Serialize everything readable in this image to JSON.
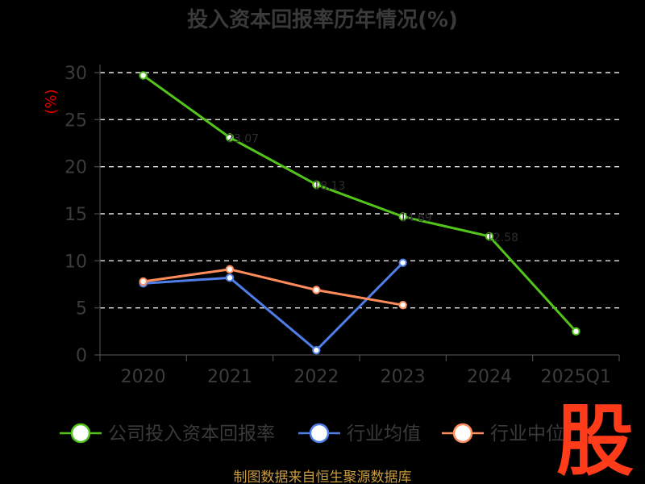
{
  "chart_data": {
    "type": "line",
    "title": "投入资本回报率历年情况(%)",
    "ylabel": "(%)",
    "xlabel": "",
    "categories": [
      "2020",
      "2021",
      "2022",
      "2023",
      "2024",
      "2025Q1"
    ],
    "ylim": [
      0,
      30
    ],
    "yticks": [
      0,
      5,
      10,
      15,
      20,
      25,
      30
    ],
    "grid": true,
    "legend_position": "bottom",
    "series": [
      {
        "name": "公司投入资本回报率",
        "color": "#52c41a",
        "values": [
          29.7,
          23.1,
          18.1,
          14.7,
          12.6,
          2.5
        ],
        "data_labels": [
          "",
          "23.07",
          "18.13",
          "14.69",
          "12.58",
          ""
        ]
      },
      {
        "name": "行业均值",
        "color": "#4f7ee8",
        "values": [
          7.6,
          8.2,
          0.5,
          9.8,
          null,
          null
        ],
        "data_labels": [
          "",
          "",
          "",
          "",
          "",
          ""
        ]
      },
      {
        "name": "行业中位",
        "color": "#ff8c5a",
        "values": [
          7.8,
          9.1,
          6.9,
          5.3,
          null,
          null
        ],
        "data_labels": [
          "",
          "",
          "",
          "",
          "",
          ""
        ]
      }
    ]
  },
  "footer": {
    "source": "制图数据来自恒生聚源数据库"
  },
  "watermark": {
    "text": "股"
  }
}
